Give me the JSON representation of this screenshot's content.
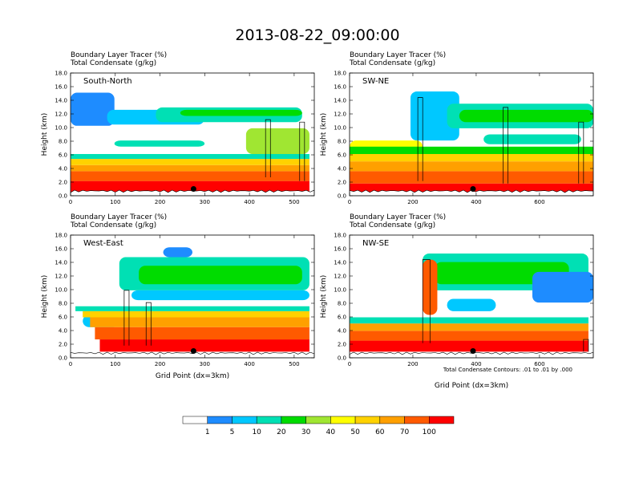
{
  "title": "2013-08-22_09:00:00",
  "colors": {
    "levels": [
      "#ffffff",
      "#1e8cff",
      "#00c8ff",
      "#00e0b4",
      "#00dc00",
      "#a0e632",
      "#ffff00",
      "#ffd200",
      "#ffa000",
      "#ff5a00",
      "#ff0000"
    ],
    "contour": "#000000",
    "marker": "#000000"
  },
  "colorbar": {
    "labels": [
      "1",
      "5",
      "10",
      "20",
      "30",
      "40",
      "50",
      "60",
      "70",
      "100"
    ]
  },
  "note": "Total Condensate Contours: .01 to .01 by .000",
  "chart_data": [
    {
      "type": "heatmap",
      "panel": "South-North",
      "title_lines": [
        "Boundary Layer Tracer    (%)",
        "Total Condensate    (g/kg)"
      ],
      "ylabel": "Height (km)",
      "xlabel": "",
      "xlim": [
        0,
        545
      ],
      "ylim": [
        0,
        18
      ],
      "xticks": [
        "0",
        "100",
        "200",
        "300",
        "400",
        "500"
      ],
      "xtick_values": [
        0,
        100,
        200,
        300,
        400,
        500
      ],
      "yticks": [
        "0.0",
        "2.0",
        "4.0",
        "6.0",
        "8.0",
        "10.0",
        "12.0",
        "14.0",
        "16.0",
        "18.0"
      ],
      "marker_x": 275,
      "marker_y": 1.0
    },
    {
      "type": "heatmap",
      "panel": "SW-NE",
      "title_lines": [
        "Boundary Layer Tracer    (%)",
        "Total Condensate    (g/kg)"
      ],
      "ylabel": "Height (km)",
      "xlabel": "",
      "xlim": [
        0,
        770
      ],
      "ylim": [
        0,
        18
      ],
      "xticks": [
        "0",
        "200",
        "400",
        "600"
      ],
      "xtick_values": [
        0,
        200,
        400,
        600
      ],
      "yticks": [
        "0.0",
        "2.0",
        "4.0",
        "6.0",
        "8.0",
        "10.0",
        "12.0",
        "14.0",
        "16.0",
        "18.0"
      ],
      "marker_x": 390,
      "marker_y": 1.0
    },
    {
      "type": "heatmap",
      "panel": "West-East",
      "title_lines": [
        "Boundary Layer Tracer    (%)",
        "Total Condensate    (g/kg)"
      ],
      "ylabel": "Height (km)",
      "xlabel": "Grid Point (dx=3km)",
      "xlim": [
        0,
        545
      ],
      "ylim": [
        0,
        18
      ],
      "xticks": [
        "0",
        "100",
        "200",
        "300",
        "400",
        "500"
      ],
      "xtick_values": [
        0,
        100,
        200,
        300,
        400,
        500
      ],
      "yticks": [
        "0.0",
        "2.0",
        "4.0",
        "6.0",
        "8.0",
        "10.0",
        "12.0",
        "14.0",
        "16.0",
        "18.0"
      ],
      "marker_x": 275,
      "marker_y": 1.0
    },
    {
      "type": "heatmap",
      "panel": "NW-SE",
      "title_lines": [
        "Boundary Layer Tracer    (%)",
        "Total Condensate    (g/kg)"
      ],
      "ylabel": "Height (km)",
      "xlabel": "Grid Point (dx=3km)",
      "xlim": [
        0,
        770
      ],
      "ylim": [
        0,
        18
      ],
      "xticks": [
        "0",
        "200",
        "400",
        "600"
      ],
      "xtick_values": [
        0,
        200,
        400,
        600
      ],
      "yticks": [
        "0.0",
        "2.0",
        "4.0",
        "6.0",
        "8.0",
        "10.0",
        "12.0",
        "14.0",
        "16.0",
        "18.0"
      ],
      "marker_x": 390,
      "marker_y": 1.0
    }
  ]
}
